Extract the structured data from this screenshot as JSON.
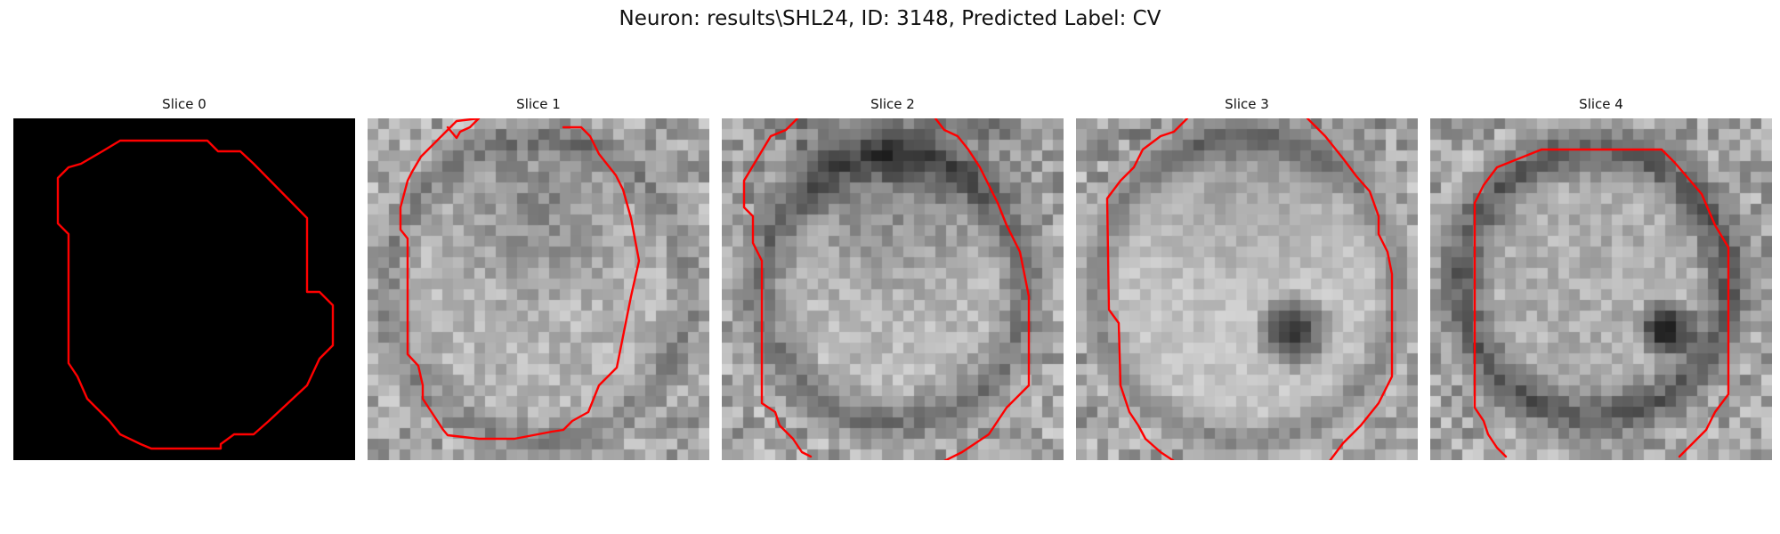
{
  "figure": {
    "title": "Neuron: results\\SHL24, ID: 3148, Predicted Label: CV"
  },
  "contour_color": "#ff0000",
  "background_color": "#ffffff",
  "slices": [
    {
      "title": "Slice 0",
      "image": "black"
    },
    {
      "title": "Slice 1",
      "image": "grayscale-noise"
    },
    {
      "title": "Slice 2",
      "image": "grayscale-noise"
    },
    {
      "title": "Slice 3",
      "image": "grayscale-noise"
    },
    {
      "title": "Slice 4",
      "image": "grayscale-noise"
    }
  ]
}
